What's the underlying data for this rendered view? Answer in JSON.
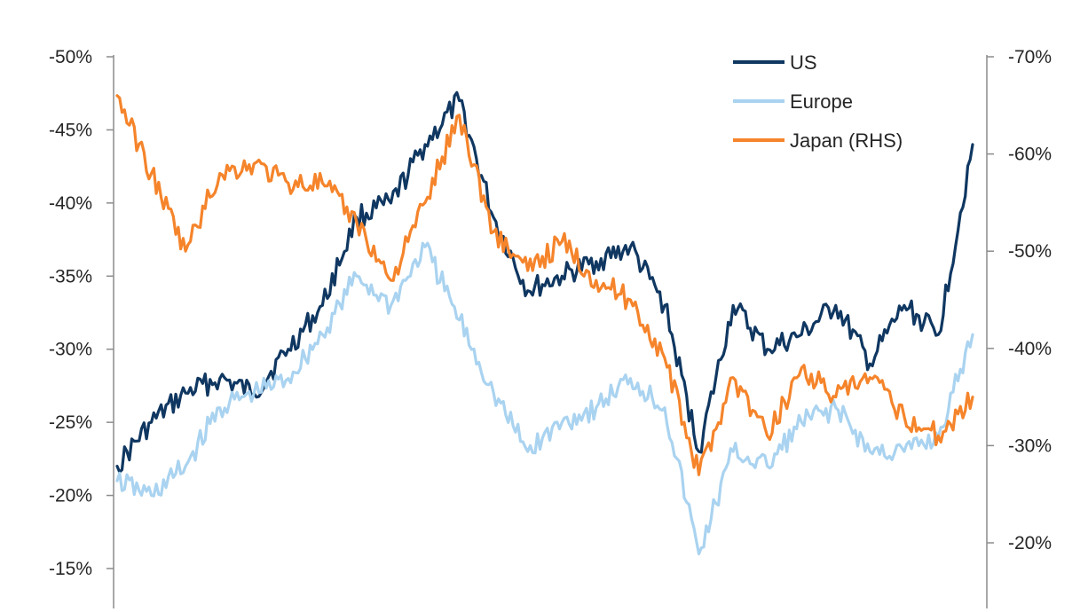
{
  "chart_data": {
    "type": "line",
    "title": "",
    "xlabel": "",
    "ylabel": "",
    "legend": {
      "placement": "top-right"
    },
    "grid": false,
    "y_left": {
      "ticks": [
        -50,
        -45,
        -40,
        -35,
        -30,
        -25,
        -20,
        -15
      ],
      "tick_labels": [
        "-50%",
        "-45%",
        "-40%",
        "-35%",
        "-30%",
        "-25%",
        "-20%",
        "-15%"
      ],
      "inverted": true
    },
    "y_right": {
      "ticks": [
        -70,
        -60,
        -50,
        -40,
        -30,
        -20
      ],
      "tick_labels": [
        "-70%",
        "-60%",
        "-50%",
        "-40%",
        "-30%",
        "-20%"
      ],
      "inverted": true
    },
    "x": [
      0,
      4,
      8,
      12,
      16,
      20,
      24,
      28,
      32,
      36,
      40,
      44,
      48,
      52,
      56,
      60,
      64,
      68,
      72,
      76,
      80,
      84,
      88,
      92,
      96,
      100
    ],
    "series": [
      {
        "name": "US",
        "color": "#0f3761",
        "axis": "left",
        "values": [
          -22,
          -25,
          -27,
          -28,
          -27,
          -30,
          -33,
          -39,
          -40,
          -44,
          -47,
          -39,
          -34,
          -35,
          -36,
          -37,
          -33,
          -23,
          -33,
          -30,
          -31,
          -33,
          -29,
          -33,
          -31,
          -44
        ]
      },
      {
        "name": "Europe",
        "color": "#a9d3f0",
        "axis": "left",
        "values": [
          -21,
          -20,
          -22,
          -26,
          -27,
          -28,
          -31,
          -35,
          -33,
          -37,
          -32,
          -27,
          -23,
          -25,
          -26,
          -28,
          -26,
          -16,
          -23,
          -22,
          -25,
          -26,
          -23,
          -23,
          -24,
          -31
        ]
      },
      {
        "name": "Japan (RHS)",
        "color": "#f5842b",
        "axis": "right",
        "values": [
          -66,
          -58,
          -50,
          -58,
          -59,
          -57,
          -57,
          -53,
          -47,
          -55,
          -64,
          -52,
          -48,
          -51,
          -47,
          -45,
          -39,
          -27,
          -37,
          -31,
          -38,
          -35,
          -37,
          -33,
          -31,
          -35
        ]
      }
    ]
  }
}
